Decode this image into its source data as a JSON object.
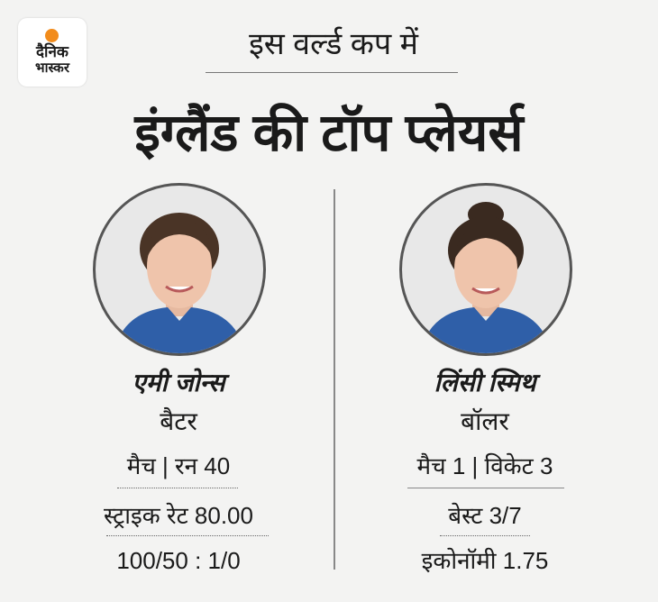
{
  "logo": {
    "line1": "दैनिक",
    "line2": "भास्कर",
    "accent": "#f28c1c"
  },
  "header": {
    "subtitle": "इस वर्ल्ड कप में",
    "title": "इंग्लैंड की टॉप प्लेयर्स"
  },
  "players": [
    {
      "name": "एमी जोन्स",
      "role": "बैटर",
      "stats": [
        "मैच | रन 40",
        "स्ट्राइक रेट 80.00",
        "100/50 : 1/0"
      ]
    },
    {
      "name": "लिंसी स्मिथ",
      "role": "बॉलर",
      "stats": [
        "मैच 1 | विकेट 3",
        "बेस्ट 3/7",
        "इकोनॉमी 1.75"
      ]
    }
  ],
  "colors": {
    "kit": "#2f5fa8",
    "background": "#f3f3f2"
  }
}
